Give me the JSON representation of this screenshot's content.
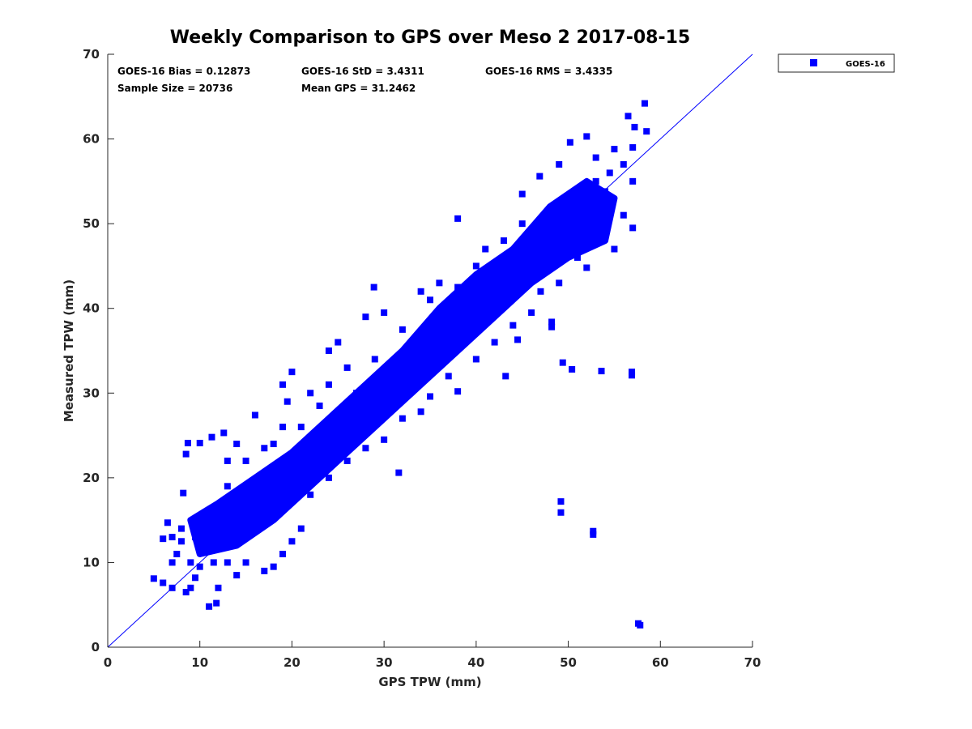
{
  "chart_data": {
    "type": "scatter",
    "title": "Weekly Comparison to GPS over Meso 2 2017-08-15",
    "xlabel": "GPS TPW (mm)",
    "ylabel": "Measured TPW (mm)",
    "xlim": [
      0,
      70
    ],
    "ylim": [
      0,
      70
    ],
    "xticks": [
      "0",
      "10",
      "20",
      "30",
      "40",
      "50",
      "60",
      "70"
    ],
    "yticks": [
      "0",
      "10",
      "20",
      "30",
      "40",
      "50",
      "60",
      "70"
    ],
    "grid": false,
    "legend": {
      "position": "outside-top-right",
      "entries": [
        "GOES-16"
      ]
    },
    "reference_line": {
      "label": "1:1",
      "from": [
        0,
        0
      ],
      "to": [
        70,
        70
      ]
    },
    "stats": {
      "bias": "GOES-16 Bias = 0.12873",
      "std": "GOES-16 StD = 3.4311",
      "rms": "GOES-16 RMS = 3.4335",
      "sample_size": "Sample Size = 20736",
      "mean_gps": "Mean GPS = 31.2462"
    },
    "series": [
      {
        "name": "GOES-16",
        "color": "#0000ff",
        "marker": "square",
        "density_envelope": [
          [
            10,
            11
          ],
          [
            14,
            12
          ],
          [
            18,
            15
          ],
          [
            22,
            19
          ],
          [
            26,
            23
          ],
          [
            30,
            27
          ],
          [
            34,
            31
          ],
          [
            38,
            35
          ],
          [
            42,
            39
          ],
          [
            46,
            43
          ],
          [
            50,
            46
          ],
          [
            54,
            48
          ],
          [
            55,
            53
          ],
          [
            52,
            55
          ],
          [
            48,
            52
          ],
          [
            44,
            47
          ],
          [
            40,
            44
          ],
          [
            36,
            40
          ],
          [
            32,
            35
          ],
          [
            28,
            31
          ],
          [
            24,
            27
          ],
          [
            20,
            23
          ],
          [
            16,
            20
          ],
          [
            12,
            17
          ],
          [
            9,
            15
          ]
        ],
        "points": [
          [
            57.6,
            2.8
          ],
          [
            57.8,
            2.6
          ],
          [
            52.7,
            13.7
          ],
          [
            52.7,
            13.3
          ],
          [
            49.2,
            17.2
          ],
          [
            49.2,
            15.9
          ],
          [
            56.9,
            32.5
          ],
          [
            56.9,
            32.1
          ],
          [
            53.6,
            32.6
          ],
          [
            49.4,
            33.6
          ],
          [
            50.4,
            32.8
          ],
          [
            48.2,
            38.4
          ],
          [
            48.2,
            37.8
          ],
          [
            44.5,
            36.3
          ],
          [
            43.2,
            32
          ],
          [
            31.6,
            20.6
          ],
          [
            28.9,
            42.5
          ],
          [
            5,
            8.1
          ],
          [
            6,
            7.6
          ],
          [
            7,
            7
          ],
          [
            8.5,
            6.5
          ],
          [
            8.2,
            18.2
          ],
          [
            8.5,
            22.8
          ],
          [
            8.7,
            24.1
          ],
          [
            10,
            24.1
          ],
          [
            11.3,
            24.8
          ],
          [
            12.6,
            25.3
          ],
          [
            14,
            24
          ],
          [
            16,
            27.4
          ],
          [
            13,
            22
          ],
          [
            11,
            4.8
          ],
          [
            11.8,
            5.2
          ],
          [
            12,
            7
          ],
          [
            58.3,
            64.2
          ],
          [
            56.5,
            62.7
          ],
          [
            57.2,
            61.4
          ],
          [
            58.5,
            60.9
          ],
          [
            52,
            60.3
          ],
          [
            50.2,
            59.6
          ],
          [
            54,
            53.8
          ],
          [
            45,
            53.5
          ],
          [
            46.9,
            55.6
          ],
          [
            38,
            50.6
          ],
          [
            34,
            42
          ],
          [
            30,
            39.5
          ],
          [
            28,
            39
          ],
          [
            25,
            36
          ],
          [
            24,
            35
          ],
          [
            20,
            32.5
          ],
          [
            19,
            31
          ],
          [
            19.5,
            29
          ],
          [
            24,
            31
          ],
          [
            27,
            30
          ],
          [
            33,
            33
          ],
          [
            36,
            43
          ],
          [
            41,
            47
          ],
          [
            43,
            48
          ],
          [
            56,
            57
          ],
          [
            55,
            58.8
          ],
          [
            57,
            59
          ],
          [
            49,
            57
          ],
          [
            53,
            57.8
          ],
          [
            54.5,
            56
          ],
          [
            57,
            55
          ],
          [
            56,
            51
          ],
          [
            54,
            49
          ],
          [
            57,
            49.5
          ],
          [
            55,
            47
          ],
          [
            52,
            44.8
          ],
          [
            51,
            46
          ],
          [
            49,
            43
          ],
          [
            47,
            42
          ],
          [
            46,
            39.5
          ],
          [
            44,
            38
          ],
          [
            42,
            36
          ],
          [
            40,
            34
          ],
          [
            38,
            30.2
          ],
          [
            37,
            32
          ],
          [
            35,
            29.6
          ],
          [
            34,
            27.8
          ],
          [
            32,
            27
          ],
          [
            30,
            24.5
          ],
          [
            28,
            23.5
          ],
          [
            26,
            22
          ],
          [
            24,
            20
          ],
          [
            22,
            18
          ],
          [
            21,
            14
          ],
          [
            20,
            12.5
          ],
          [
            19,
            11
          ],
          [
            18,
            9.5
          ],
          [
            17,
            9
          ],
          [
            15,
            10
          ],
          [
            14,
            8.5
          ],
          [
            13,
            10
          ],
          [
            11.5,
            10
          ],
          [
            10,
            9.5
          ],
          [
            9,
            10
          ],
          [
            7.5,
            11
          ],
          [
            7,
            13
          ],
          [
            6.5,
            14.7
          ],
          [
            8,
            14
          ],
          [
            9.5,
            13
          ],
          [
            10.5,
            15
          ],
          [
            8,
            12.5
          ],
          [
            6,
            12.8
          ],
          [
            7,
            10
          ],
          [
            9.5,
            8.2
          ],
          [
            9,
            7
          ],
          [
            12,
            16
          ],
          [
            13,
            19
          ],
          [
            15,
            22
          ],
          [
            17,
            23.5
          ],
          [
            18,
            24
          ],
          [
            19,
            26
          ],
          [
            21,
            26
          ],
          [
            23,
            28.5
          ],
          [
            22,
            30
          ],
          [
            26,
            33
          ],
          [
            29,
            34
          ],
          [
            32,
            37.5
          ],
          [
            35,
            41
          ],
          [
            38,
            42.5
          ],
          [
            40,
            45
          ],
          [
            42,
            43.2
          ],
          [
            44,
            46
          ],
          [
            45,
            50
          ],
          [
            47,
            48
          ],
          [
            49,
            51
          ],
          [
            51,
            53
          ],
          [
            53,
            55
          ],
          [
            50,
            50
          ],
          [
            48,
            45
          ],
          [
            46,
            46.5
          ],
          [
            12,
            12
          ],
          [
            13,
            13.5
          ],
          [
            11,
            14
          ],
          [
            10,
            13
          ],
          [
            14,
            15.5
          ],
          [
            16,
            16
          ],
          [
            15,
            18
          ],
          [
            17,
            18
          ],
          [
            20,
            21
          ],
          [
            18,
            20
          ]
        ]
      }
    ]
  }
}
